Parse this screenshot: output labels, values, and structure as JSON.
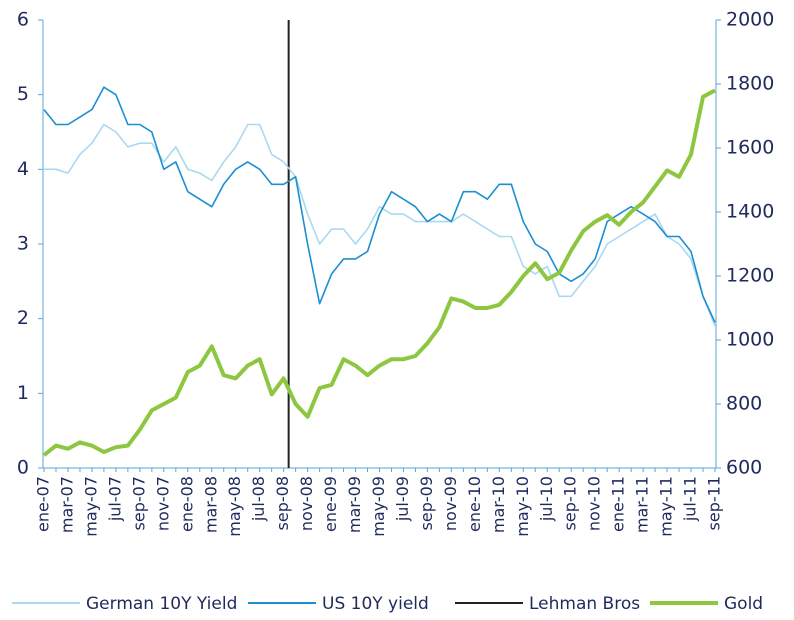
{
  "chart_data": {
    "type": "line",
    "categories": [
      "ene-07",
      null,
      "mar-07",
      null,
      "may-07",
      null,
      "jul-07",
      null,
      "sep-07",
      null,
      "nov-07",
      null,
      "ene-08",
      null,
      "mar-08",
      null,
      "may-08",
      null,
      "jul-08",
      null,
      "sep-08",
      null,
      "nov-08",
      null,
      "ene-09",
      null,
      "mar-09",
      null,
      "may-09",
      null,
      "jul-09",
      null,
      "sep-09",
      null,
      "nov-09",
      null,
      "ene-10",
      null,
      "mar-10",
      null,
      "may-10",
      null,
      "jul-10",
      null,
      "sep-10",
      null,
      "nov-10",
      null,
      "ene-11",
      null,
      "mar-11",
      null,
      "may-11",
      null,
      "jul-11",
      null,
      "sep-11"
    ],
    "series": [
      {
        "name": "German 10Y Yield",
        "color": "#a9d9f0",
        "axis": "y",
        "values": [
          4.0,
          4.0,
          3.95,
          4.2,
          4.35,
          4.6,
          4.5,
          4.3,
          4.35,
          4.35,
          4.1,
          4.3,
          4.0,
          3.95,
          3.85,
          4.1,
          4.3,
          4.6,
          4.6,
          4.2,
          4.1,
          3.9,
          3.4,
          3.0,
          3.2,
          3.2,
          3.0,
          3.2,
          3.5,
          3.4,
          3.4,
          3.3,
          3.3,
          3.3,
          3.3,
          3.4,
          3.3,
          3.2,
          3.1,
          3.1,
          2.7,
          2.6,
          2.7,
          2.3,
          2.3,
          2.5,
          2.7,
          3.0,
          3.1,
          3.2,
          3.3,
          3.4,
          3.1,
          3.0,
          2.8,
          2.3,
          1.9
        ]
      },
      {
        "name": "US 10Y yield",
        "color": "#1b8fd2",
        "axis": "y",
        "values": [
          4.8,
          4.6,
          4.6,
          4.7,
          4.8,
          5.1,
          5.0,
          4.6,
          4.6,
          4.5,
          4.0,
          4.1,
          3.7,
          3.6,
          3.5,
          3.8,
          4.0,
          4.1,
          4.0,
          3.8,
          3.8,
          3.9,
          3.0,
          2.2,
          2.6,
          2.8,
          2.8,
          2.9,
          3.4,
          3.7,
          3.6,
          3.5,
          3.3,
          3.4,
          3.3,
          3.7,
          3.7,
          3.6,
          3.8,
          3.8,
          3.3,
          3.0,
          2.9,
          2.6,
          2.5,
          2.6,
          2.8,
          3.3,
          3.4,
          3.5,
          3.4,
          3.3,
          3.1,
          3.1,
          2.9,
          2.3,
          1.95
        ]
      },
      {
        "name": "Gold",
        "color": "#8dc63f",
        "axis": "y2",
        "values": [
          640,
          670,
          660,
          680,
          670,
          650,
          665,
          670,
          720,
          780,
          800,
          820,
          900,
          920,
          980,
          890,
          880,
          920,
          940,
          830,
          880,
          800,
          760,
          850,
          860,
          940,
          920,
          890,
          920,
          940,
          940,
          950,
          990,
          1040,
          1130,
          1120,
          1100,
          1100,
          1110,
          1150,
          1200,
          1240,
          1190,
          1210,
          1280,
          1340,
          1370,
          1390,
          1360,
          1400,
          1430,
          1480,
          1530,
          1510,
          1580,
          1760,
          1780
        ]
      }
    ],
    "event": {
      "name": "Lehman Bros",
      "color": "#222222",
      "at": "sep-08"
    },
    "ylim": [
      0,
      6
    ],
    "yticks": [
      0,
      1,
      2,
      3,
      4,
      5,
      6
    ],
    "y2lim": [
      600,
      2000
    ],
    "y2ticks": [
      600,
      800,
      1000,
      1200,
      1400,
      1600,
      1800,
      2000
    ]
  }
}
